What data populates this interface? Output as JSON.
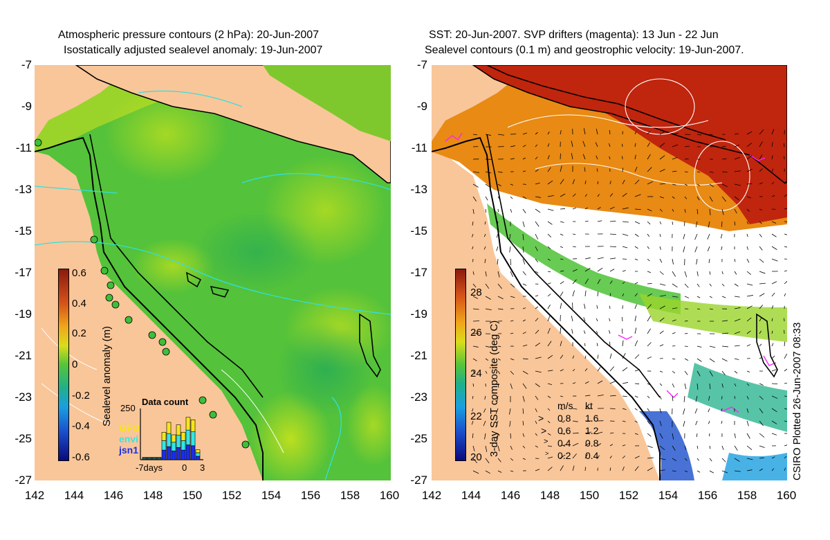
{
  "left": {
    "title_line1": "Atmospheric pressure contours (2 hPa): 20-Jun-2007",
    "title_line2": "Isostatically adjusted sealevel anomaly: 19-Jun-2007",
    "colorbar_label": "Sealevel anomaly (m)",
    "colorbar_ticks": [
      "0.6",
      "0.4",
      "0.2",
      "0",
      "-0.2",
      "-0.4",
      "-0.6"
    ],
    "inset": {
      "title": "Data count",
      "ymax": "250",
      "sat1": "GFO",
      "sat2": "envi",
      "sat3": "jsn1",
      "xlabel_left": "-7days",
      "xlabel_mid": "0",
      "xlabel_right": "3",
      "bars": [
        0.05,
        0.05,
        0.05,
        0.05,
        0.55,
        0.75,
        0.5,
        0.7,
        0.55,
        0.85,
        0.8,
        0.2
      ]
    }
  },
  "right": {
    "title_line1": "SST: 20-Jun-2007. SVP drifters (magenta): 13 Jun - 22 Jun",
    "title_line2": "Sealevel contours (0.1 m) and geostrophic velocity: 19-Jun-2007.",
    "colorbar_label": "3-day SST composite (deg C)",
    "colorbar_ticks": [
      "28",
      "26",
      "24",
      "22",
      "20"
    ],
    "speed_header_ms": "m/s",
    "speed_header_kt": "kt",
    "speeds": [
      {
        "ms": "0.8",
        "kt": "1.6"
      },
      {
        "ms": "0.6",
        "kt": "1.2"
      },
      {
        "ms": "0.4",
        "kt": "0.8"
      },
      {
        "ms": "0.2",
        "kt": "0.4"
      }
    ],
    "credit": "CSIRO Plotted 26-Jun-2007 08:33"
  },
  "axes": {
    "y_ticks": [
      "-7",
      "-9",
      "-11",
      "-13",
      "-15",
      "-17",
      "-19",
      "-21",
      "-23",
      "-25",
      "-27"
    ],
    "x_ticks": [
      "142",
      "144",
      "146",
      "148",
      "150",
      "152",
      "154",
      "156",
      "158",
      "160"
    ]
  },
  "colors": {
    "land": "#f9c699",
    "ocean_green": "#4ec235",
    "sst_warm": "#c0250e",
    "sst_orange": "#e88a14",
    "contour_cyan": "#30e0e0",
    "drifter_magenta": "#ff20ff"
  }
}
